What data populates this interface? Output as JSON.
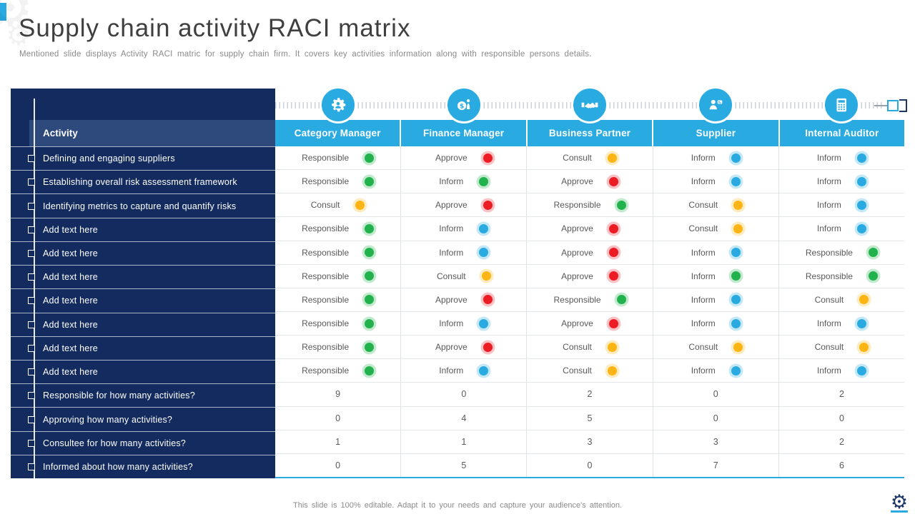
{
  "slide": {
    "title": "Supply chain activity RACI matrix",
    "subtitle": "Mentioned slide displays Activity RACI matric for supply chain firm. It covers key activities information along with responsible persons details.",
    "footer": "This slide is 100% editable. Adapt it to your needs and capture your audience's attention."
  },
  "colors": {
    "header_blue": "#29ABE2",
    "sidebar_navy": "#132B5F",
    "band_navy": "#2E4A7C",
    "green": "#21B24D",
    "red": "#EC1C24",
    "yellow": "#FDB515",
    "blue": "#29ABE2"
  },
  "matrix": {
    "activity_header": "Activity",
    "columns": [
      {
        "label": "Category Manager",
        "icon": "gear-person-icon"
      },
      {
        "label": "Finance Manager",
        "icon": "money-icon"
      },
      {
        "label": "Business Partner",
        "icon": "handshake-icon"
      },
      {
        "label": "Supplier",
        "icon": "supplier-icon"
      },
      {
        "label": "Internal Auditor",
        "icon": "calculator-icon"
      }
    ],
    "rows": [
      {
        "activity": "Defining and engaging suppliers",
        "cells": [
          {
            "label": "Responsible",
            "color": "green"
          },
          {
            "label": "Approve",
            "color": "red"
          },
          {
            "label": "Consult",
            "color": "yellow"
          },
          {
            "label": "Inform",
            "color": "blue"
          },
          {
            "label": "Inform",
            "color": "blue"
          }
        ]
      },
      {
        "activity": "Establishing overall risk assessment framework",
        "cells": [
          {
            "label": "Responsible",
            "color": "green"
          },
          {
            "label": "Inform",
            "color": "green"
          },
          {
            "label": "Approve",
            "color": "red"
          },
          {
            "label": "Inform",
            "color": "blue"
          },
          {
            "label": "Inform",
            "color": "blue"
          }
        ]
      },
      {
        "activity": "Identifying metrics to capture and quantify risks",
        "cells": [
          {
            "label": "Consult",
            "color": "yellow"
          },
          {
            "label": "Approve",
            "color": "red"
          },
          {
            "label": "Responsible",
            "color": "green"
          },
          {
            "label": "Consult",
            "color": "yellow"
          },
          {
            "label": "Inform",
            "color": "blue"
          }
        ]
      },
      {
        "activity": "Add text here",
        "cells": [
          {
            "label": "Responsible",
            "color": "green"
          },
          {
            "label": "Inform",
            "color": "blue"
          },
          {
            "label": "Approve",
            "color": "red"
          },
          {
            "label": "Consult",
            "color": "yellow"
          },
          {
            "label": "Inform",
            "color": "blue"
          }
        ]
      },
      {
        "activity": "Add text here",
        "cells": [
          {
            "label": "Responsible",
            "color": "green"
          },
          {
            "label": "Inform",
            "color": "blue"
          },
          {
            "label": "Approve",
            "color": "red"
          },
          {
            "label": "Inform",
            "color": "blue"
          },
          {
            "label": "Responsible",
            "color": "green"
          }
        ]
      },
      {
        "activity": "Add text here",
        "cells": [
          {
            "label": "Responsible",
            "color": "green"
          },
          {
            "label": "Consult",
            "color": "yellow"
          },
          {
            "label": "Approve",
            "color": "red"
          },
          {
            "label": "Inform",
            "color": "green"
          },
          {
            "label": "Responsible",
            "color": "green"
          }
        ]
      },
      {
        "activity": "Add text here",
        "cells": [
          {
            "label": "Responsible",
            "color": "green"
          },
          {
            "label": "Approve",
            "color": "red"
          },
          {
            "label": "Responsible",
            "color": "green"
          },
          {
            "label": "Inform",
            "color": "blue"
          },
          {
            "label": "Consult",
            "color": "yellow"
          }
        ]
      },
      {
        "activity": "Add text here",
        "cells": [
          {
            "label": "Responsible",
            "color": "green"
          },
          {
            "label": "Inform",
            "color": "blue"
          },
          {
            "label": "Approve",
            "color": "red"
          },
          {
            "label": "Inform",
            "color": "blue"
          },
          {
            "label": "Inform",
            "color": "blue"
          }
        ]
      },
      {
        "activity": "Add text here",
        "cells": [
          {
            "label": "Responsible",
            "color": "green"
          },
          {
            "label": "Approve",
            "color": "red"
          },
          {
            "label": "Consult",
            "color": "yellow"
          },
          {
            "label": "Consult",
            "color": "yellow"
          },
          {
            "label": "Consult",
            "color": "yellow"
          }
        ]
      },
      {
        "activity": "Add text here",
        "cells": [
          {
            "label": "Responsible",
            "color": "green"
          },
          {
            "label": "Inform",
            "color": "blue"
          },
          {
            "label": "Consult",
            "color": "yellow"
          },
          {
            "label": "Inform",
            "color": "blue"
          },
          {
            "label": "Inform",
            "color": "blue"
          }
        ]
      }
    ],
    "summary_rows": [
      {
        "label": "Responsible for how many activities?",
        "values": [
          "9",
          "0",
          "2",
          "0",
          "2"
        ]
      },
      {
        "label": "Approving how many activities?",
        "values": [
          "0",
          "4",
          "5",
          "0",
          "0"
        ]
      },
      {
        "label": "Consultee for how many activities?",
        "values": [
          "1",
          "1",
          "3",
          "3",
          "2"
        ]
      },
      {
        "label": "Informed about how many activities?",
        "values": [
          "0",
          "5",
          "0",
          "7",
          "6"
        ]
      }
    ]
  }
}
